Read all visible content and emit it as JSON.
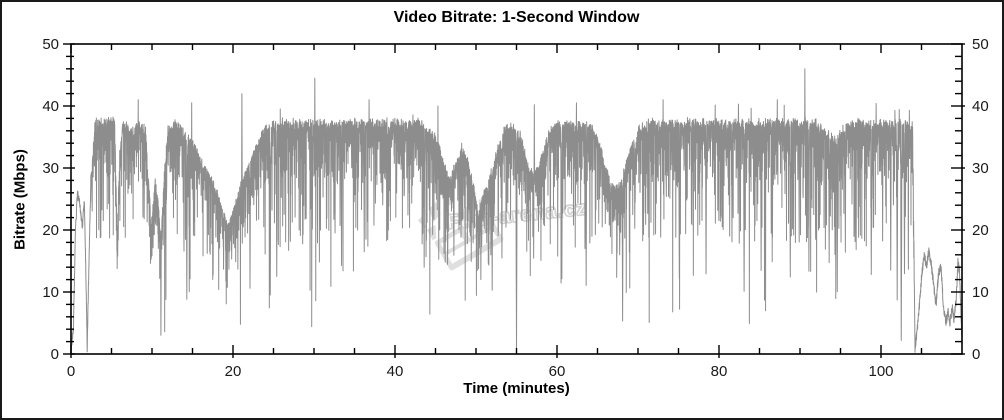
{
  "chart_data": {
    "type": "line",
    "title": "Video Bitrate: 1-Second Window",
    "xlabel": "Time (minutes)",
    "ylabel": "Bitrate (Mbps)",
    "xlim": [
      0,
      110
    ],
    "ylim": [
      0,
      50
    ],
    "x_major_ticks": [
      0,
      20,
      40,
      60,
      80,
      100
    ],
    "x_minor_step": 5,
    "y_major_ticks": [
      0,
      10,
      20,
      30,
      40,
      50
    ],
    "y_minor_step": 2,
    "y_axis_mirrored_right": true,
    "grid": false,
    "legend": false,
    "line_color_hex": "#8d8d8d",
    "axis_color_hex": "#000000",
    "background_hex": "#ffffff",
    "series_name": "video bitrate",
    "sampling": {
      "samples_per_minute": 60,
      "noise_seed": 987654321,
      "ceiling_mbps": 38.3,
      "quiet_before_min": 2.55,
      "quiet_after_min": 104.1
    },
    "envelope_keyframes_min_mbps": [
      [
        0,
        1
      ],
      [
        0.3,
        4
      ],
      [
        0.55,
        20
      ],
      [
        0.8,
        26
      ],
      [
        1.1,
        24
      ],
      [
        1.4,
        20.5
      ],
      [
        1.65,
        25
      ],
      [
        1.85,
        12
      ],
      [
        2.0,
        1
      ],
      [
        2.2,
        14
      ],
      [
        2.45,
        28
      ],
      [
        3,
        37.4
      ],
      [
        5.4,
        37.4
      ],
      [
        5.7,
        19
      ],
      [
        6.0,
        32
      ],
      [
        6.4,
        37.2
      ],
      [
        7.4,
        35.8
      ],
      [
        8.3,
        37.4
      ],
      [
        9.2,
        36
      ],
      [
        9.9,
        21
      ],
      [
        10.4,
        28
      ],
      [
        10.8,
        24
      ],
      [
        11.1,
        18
      ],
      [
        11.5,
        29
      ],
      [
        12,
        36.2
      ],
      [
        13,
        37.2
      ],
      [
        14,
        35.5
      ],
      [
        15,
        34
      ],
      [
        16,
        31
      ],
      [
        17,
        29
      ],
      [
        18,
        26
      ],
      [
        18.8,
        22.5
      ],
      [
        19.4,
        20.5
      ],
      [
        20,
        23
      ],
      [
        20.7,
        26
      ],
      [
        21.5,
        29
      ],
      [
        22.5,
        32
      ],
      [
        23.5,
        35.5
      ],
      [
        24.5,
        37
      ],
      [
        26,
        37.3
      ],
      [
        34,
        37.2
      ],
      [
        43,
        37.3
      ],
      [
        45,
        35
      ],
      [
        46,
        31
      ],
      [
        46.8,
        28
      ],
      [
        47.5,
        30.5
      ],
      [
        48.3,
        33.5
      ],
      [
        49,
        31
      ],
      [
        49.7,
        27
      ],
      [
        50.3,
        22.5
      ],
      [
        50.8,
        25
      ],
      [
        51.5,
        28
      ],
      [
        52.3,
        31
      ],
      [
        53,
        34.5
      ],
      [
        53.8,
        37
      ],
      [
        54.8,
        36.5
      ],
      [
        55.6,
        35
      ],
      [
        56.3,
        31
      ],
      [
        57,
        28.5
      ],
      [
        57.7,
        30
      ],
      [
        58.4,
        33
      ],
      [
        59.2,
        36
      ],
      [
        60,
        37.3
      ],
      [
        64.3,
        36.8
      ],
      [
        65.4,
        33
      ],
      [
        66.2,
        29
      ],
      [
        67,
        26.5
      ],
      [
        67.8,
        27.5
      ],
      [
        68.6,
        31
      ],
      [
        69.4,
        34
      ],
      [
        70.2,
        36.5
      ],
      [
        71,
        37.3
      ],
      [
        92,
        37.3
      ],
      [
        93.4,
        35.5
      ],
      [
        94.4,
        34.5
      ],
      [
        95.4,
        36.5
      ],
      [
        96.8,
        37.3
      ],
      [
        103.9,
        37.2
      ],
      [
        104.05,
        20
      ],
      [
        104.2,
        1
      ],
      [
        104.45,
        3.5
      ],
      [
        104.75,
        8
      ],
      [
        105.05,
        13
      ],
      [
        105.35,
        16
      ],
      [
        105.6,
        14
      ],
      [
        105.9,
        16.5
      ],
      [
        106.2,
        14.5
      ],
      [
        106.5,
        11
      ],
      [
        106.8,
        8
      ],
      [
        107.1,
        13
      ],
      [
        107.4,
        14
      ],
      [
        107.7,
        8
      ],
      [
        108.0,
        5
      ],
      [
        108.3,
        7
      ],
      [
        108.5,
        5
      ],
      [
        108.8,
        7.5
      ],
      [
        109.0,
        5.5
      ],
      [
        109.3,
        9
      ],
      [
        109.5,
        15
      ],
      [
        109.7,
        13
      ],
      [
        109.9,
        5
      ],
      [
        110,
        2
      ]
    ],
    "deep_dips_min_mbps": [
      [
        2.0,
        0
      ],
      [
        9.9,
        15
      ],
      [
        11.1,
        3
      ],
      [
        14.3,
        8
      ],
      [
        17.5,
        12
      ],
      [
        19.8,
        16
      ],
      [
        22.1,
        10
      ],
      [
        24.6,
        9
      ],
      [
        25.4,
        12
      ],
      [
        28.6,
        17
      ],
      [
        29.8,
        20
      ],
      [
        32.6,
        19
      ],
      [
        33.4,
        14
      ],
      [
        36.2,
        16
      ],
      [
        37.4,
        20
      ],
      [
        39.1,
        18
      ],
      [
        40.2,
        25
      ],
      [
        41.6,
        22
      ],
      [
        43.6,
        13
      ],
      [
        44.8,
        21
      ],
      [
        46.5,
        16
      ],
      [
        48.0,
        20
      ],
      [
        50.6,
        12
      ],
      [
        52.0,
        10
      ],
      [
        53.2,
        15
      ],
      [
        55.0,
        0.5
      ],
      [
        56.1,
        24
      ],
      [
        58.1,
        22
      ],
      [
        60.6,
        12
      ],
      [
        61.8,
        25
      ],
      [
        63.6,
        11
      ],
      [
        64.8,
        23
      ],
      [
        66.6,
        18
      ],
      [
        68.1,
        5
      ],
      [
        69.6,
        20
      ],
      [
        71.2,
        22
      ],
      [
        72.8,
        18
      ],
      [
        75.1,
        12
      ],
      [
        76.6,
        20
      ],
      [
        78.4,
        12
      ],
      [
        80.2,
        22
      ],
      [
        81.6,
        18
      ],
      [
        83.1,
        10
      ],
      [
        85.2,
        13
      ],
      [
        86.6,
        19
      ],
      [
        88.8,
        12
      ],
      [
        89.9,
        18
      ],
      [
        91.1,
        13
      ],
      [
        92.4,
        20
      ],
      [
        93.6,
        14
      ],
      [
        94.6,
        10
      ],
      [
        95.6,
        16
      ],
      [
        96.8,
        21
      ],
      [
        98.8,
        12
      ],
      [
        100.2,
        18
      ],
      [
        101.2,
        13
      ],
      [
        102.0,
        8
      ],
      [
        102.5,
        2
      ],
      [
        102.9,
        12
      ]
    ],
    "peak_spikes_min_mbps": [
      [
        8.3,
        41
      ],
      [
        14.9,
        40.5
      ],
      [
        21.1,
        42
      ],
      [
        30.1,
        44.5
      ],
      [
        36.8,
        41
      ],
      [
        45.3,
        40
      ],
      [
        57.2,
        40.2
      ],
      [
        62.4,
        40.5
      ],
      [
        73.1,
        41
      ],
      [
        82.4,
        40.3
      ],
      [
        87.2,
        41
      ],
      [
        90.6,
        46
      ],
      [
        99.4,
        40.4
      ]
    ]
  },
  "watermark": {
    "text": "Film-arena.cz",
    "icon": "clapperboard-icon",
    "color_hex": "#bdbdbd"
  }
}
